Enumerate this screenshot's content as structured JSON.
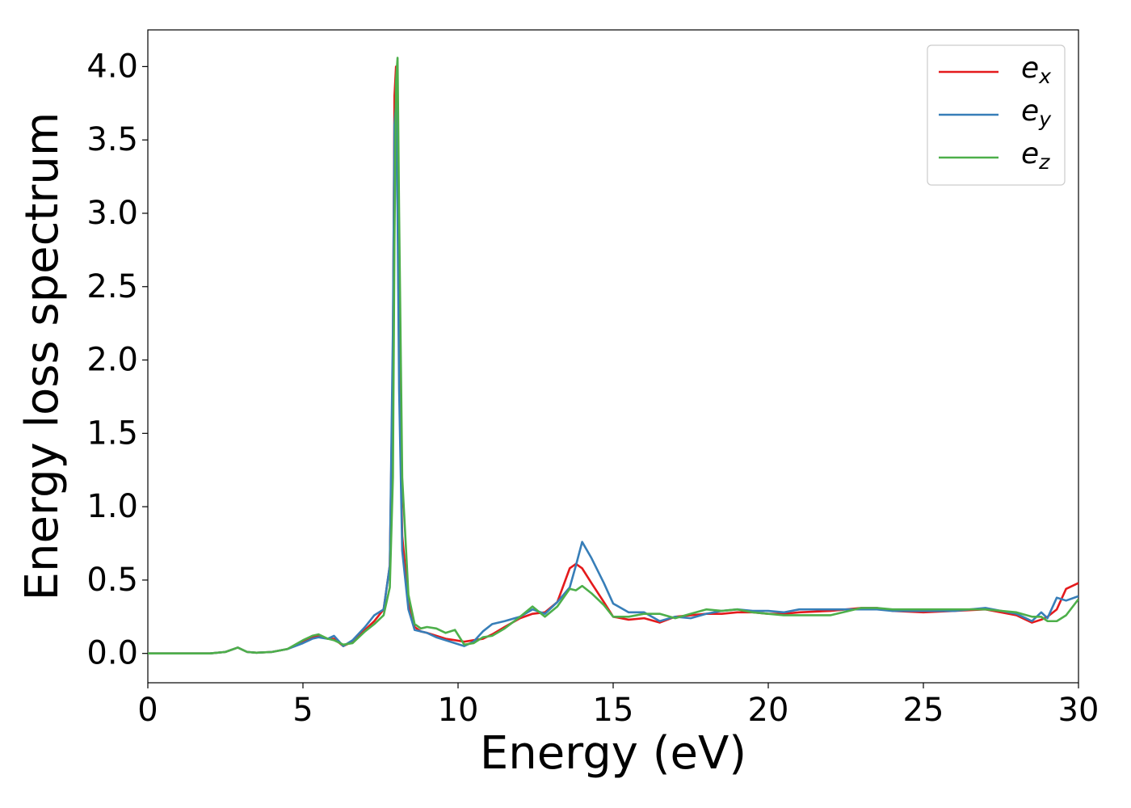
{
  "chart_data": {
    "type": "line",
    "x_label": "Energy (eV)",
    "y_label": "Energy loss spectrum",
    "x": [
      0,
      1,
      2,
      2.5,
      2.9,
      3.2,
      3.5,
      4,
      4.5,
      5,
      5.3,
      5.5,
      5.8,
      6,
      6.3,
      6.6,
      7,
      7.3,
      7.6,
      7.8,
      7.9,
      7.95,
      8.0,
      8.05,
      8.1,
      8.2,
      8.4,
      8.6,
      8.8,
      9,
      9.3,
      9.6,
      9.9,
      10.2,
      10.5,
      10.8,
      11.1,
      11.5,
      12,
      12.4,
      12.8,
      13.2,
      13.6,
      13.8,
      14,
      14.3,
      14.7,
      15,
      15.5,
      16,
      16.5,
      17,
      17.5,
      18,
      18.5,
      19,
      19.5,
      20,
      20.5,
      21,
      22,
      23,
      23.5,
      24,
      25,
      26,
      27,
      28,
      28.5,
      28.8,
      29,
      29.3,
      29.6,
      30
    ],
    "series": [
      {
        "name": "e_x",
        "color": "#e41a1c",
        "values": [
          0,
          0,
          0,
          0.01,
          0.04,
          0.01,
          0.005,
          0.01,
          0.03,
          0.08,
          0.11,
          0.12,
          0.1,
          0.1,
          0.05,
          0.08,
          0.16,
          0.22,
          0.3,
          0.6,
          2.0,
          3.8,
          4.0,
          3.2,
          2.0,
          0.8,
          0.35,
          0.18,
          0.15,
          0.14,
          0.12,
          0.1,
          0.09,
          0.08,
          0.09,
          0.1,
          0.13,
          0.18,
          0.24,
          0.27,
          0.28,
          0.35,
          0.58,
          0.61,
          0.58,
          0.48,
          0.35,
          0.25,
          0.23,
          0.24,
          0.21,
          0.25,
          0.26,
          0.27,
          0.27,
          0.28,
          0.28,
          0.27,
          0.27,
          0.28,
          0.29,
          0.31,
          0.31,
          0.29,
          0.28,
          0.29,
          0.3,
          0.26,
          0.21,
          0.23,
          0.25,
          0.3,
          0.44,
          0.48
        ]
      },
      {
        "name": "e_y",
        "color": "#377eb8",
        "values": [
          0,
          0,
          0,
          0.01,
          0.04,
          0.01,
          0.005,
          0.01,
          0.03,
          0.07,
          0.1,
          0.11,
          0.1,
          0.12,
          0.05,
          0.09,
          0.18,
          0.26,
          0.3,
          0.6,
          2.2,
          3.6,
          3.75,
          3.0,
          1.8,
          0.7,
          0.3,
          0.16,
          0.15,
          0.14,
          0.11,
          0.09,
          0.07,
          0.05,
          0.08,
          0.15,
          0.2,
          0.22,
          0.25,
          0.3,
          0.27,
          0.35,
          0.45,
          0.6,
          0.76,
          0.65,
          0.48,
          0.34,
          0.28,
          0.28,
          0.22,
          0.25,
          0.24,
          0.27,
          0.29,
          0.3,
          0.29,
          0.29,
          0.28,
          0.3,
          0.3,
          0.3,
          0.3,
          0.29,
          0.29,
          0.29,
          0.31,
          0.27,
          0.22,
          0.28,
          0.24,
          0.38,
          0.36,
          0.39
        ]
      },
      {
        "name": "e_z",
        "color": "#4daf4a",
        "values": [
          0,
          0,
          0,
          0.01,
          0.04,
          0.01,
          0.005,
          0.01,
          0.03,
          0.09,
          0.12,
          0.13,
          0.1,
          0.09,
          0.06,
          0.07,
          0.15,
          0.2,
          0.26,
          0.45,
          1.2,
          2.8,
          3.9,
          4.06,
          3.0,
          1.2,
          0.4,
          0.2,
          0.17,
          0.18,
          0.17,
          0.14,
          0.16,
          0.06,
          0.07,
          0.11,
          0.12,
          0.17,
          0.25,
          0.32,
          0.25,
          0.32,
          0.44,
          0.43,
          0.46,
          0.41,
          0.33,
          0.25,
          0.25,
          0.27,
          0.27,
          0.24,
          0.27,
          0.3,
          0.29,
          0.3,
          0.28,
          0.27,
          0.26,
          0.26,
          0.26,
          0.31,
          0.31,
          0.3,
          0.3,
          0.3,
          0.3,
          0.28,
          0.25,
          0.25,
          0.22,
          0.22,
          0.26,
          0.37
        ]
      }
    ],
    "xlim": [
      0,
      30
    ],
    "xticks": [
      0,
      5,
      10,
      15,
      20,
      25,
      30
    ],
    "ylim": [
      -0.2,
      4.25
    ],
    "yticks": [
      {
        "value": 0,
        "label": "0.0"
      },
      0.5,
      {
        "value": 1,
        "label": "1.0"
      },
      1.5,
      {
        "value": 2,
        "label": "2.0"
      },
      2.5,
      {
        "value": 3,
        "label": "3.0"
      },
      3.5,
      {
        "value": 4,
        "label": "4.0"
      }
    ],
    "legend": "upper right",
    "grid": false
  }
}
